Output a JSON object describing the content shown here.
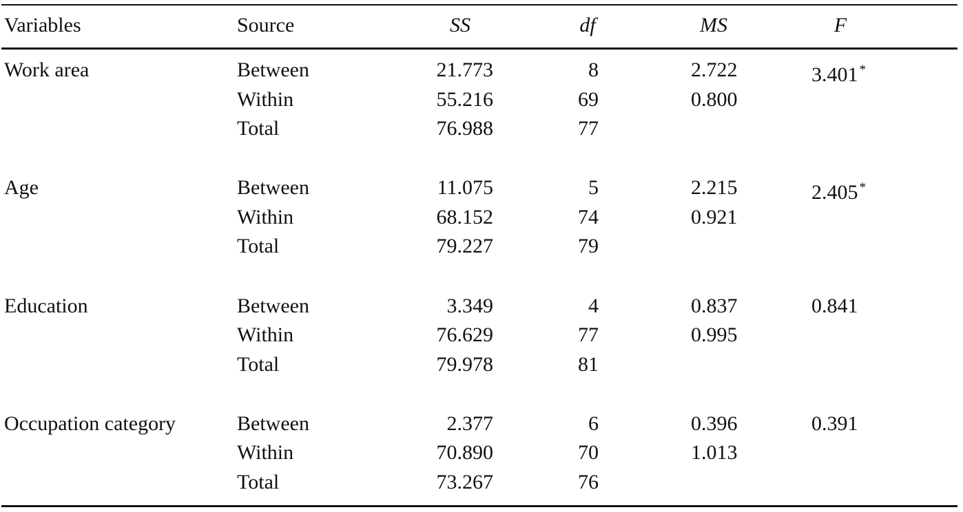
{
  "table": {
    "header": {
      "variables": "Variables",
      "source": "Source",
      "ss": "SS",
      "df": "df",
      "ms": "MS",
      "f": "F"
    },
    "groups": [
      {
        "variable": "Work area",
        "rows": [
          {
            "source": "Between",
            "ss": "21.773",
            "df": "8",
            "ms": "2.722",
            "f": "3.401",
            "f_mark": "*"
          },
          {
            "source": "Within",
            "ss": "55.216",
            "df": "69",
            "ms": "0.800"
          },
          {
            "source": "Total",
            "ss": "76.988",
            "df": "77"
          }
        ]
      },
      {
        "variable": "Age",
        "rows": [
          {
            "source": "Between",
            "ss": "11.075",
            "df": "5",
            "ms": "2.215",
            "f": "2.405",
            "f_mark": "*"
          },
          {
            "source": "Within",
            "ss": "68.152",
            "df": "74",
            "ms": "0.921"
          },
          {
            "source": "Total",
            "ss": "79.227",
            "df": "79"
          }
        ]
      },
      {
        "variable": "Education",
        "rows": [
          {
            "source": "Between",
            "ss": "3.349",
            "df": "4",
            "ms": "0.837",
            "f": "0.841"
          },
          {
            "source": "Within",
            "ss": "76.629",
            "df": "77",
            "ms": "0.995"
          },
          {
            "source": "Total",
            "ss": "79.978",
            "df": "81"
          }
        ]
      },
      {
        "variable": "Occupation category",
        "rows": [
          {
            "source": "Between",
            "ss": "2.377",
            "df": "6",
            "ms": "0.396",
            "f": "0.391"
          },
          {
            "source": "Within",
            "ss": "70.890",
            "df": "70",
            "ms": "1.013"
          },
          {
            "source": "Total",
            "ss": "73.267",
            "df": "76"
          }
        ]
      }
    ]
  }
}
